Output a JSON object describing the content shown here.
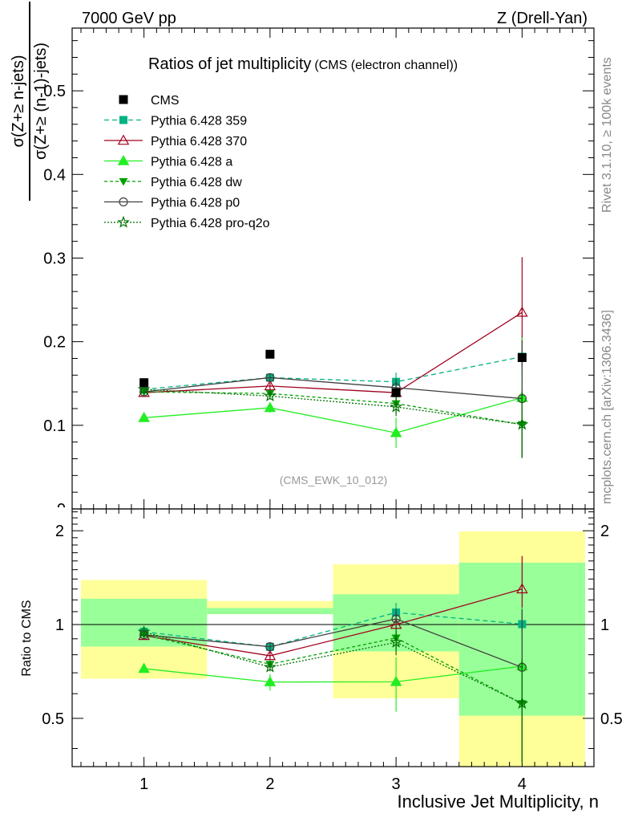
{
  "header": {
    "left": "7000 GeV pp",
    "right": "Z (Drell-Yan)"
  },
  "side": {
    "rivet": "Rivet 3.1.10, ≥ 100k events",
    "mcplots": "mcplots.cern.ch [arXiv:1306.3436]"
  },
  "chart_data": {
    "type": "line",
    "title": "Ratios of jet multiplicity",
    "subtitle": "(CMS (electron channel))",
    "analysis_tag": "(CMS_EWK_10_012)",
    "ylabel_num": "σ(Z+≥ n-jets)",
    "ylabel_den": "σ(Z+≥ (n-1)-jets)",
    "ratio_ylabel": "Ratio to CMS",
    "xlabel": "Inclusive Jet Multiplicity, n",
    "x": [
      1,
      2,
      3,
      4
    ],
    "xlim": [
      0.43,
      4.57
    ],
    "ylim": [
      0.0,
      0.575
    ],
    "ratio_ylim": [
      0.35,
      2.35
    ],
    "xticks": [
      "1",
      "2",
      "3",
      "4"
    ],
    "yticks": [
      {
        "v": 0.1,
        "label": "0.1"
      },
      {
        "v": 0.2,
        "label": "0.2"
      },
      {
        "v": 0.3,
        "label": "0.3"
      },
      {
        "v": 0.4,
        "label": "0.4"
      },
      {
        "v": 0.5,
        "label": "0.5"
      }
    ],
    "ratio_yticks": [
      {
        "v": 0.5,
        "label": "0.5"
      },
      {
        "v": 1,
        "label": "1"
      },
      {
        "v": 2,
        "label": "2"
      }
    ],
    "legend_position": "top-left",
    "data": {
      "name": "CMS",
      "values": [
        0.151,
        0.185,
        0.139,
        0.181
      ],
      "ratio_band_inner": [
        [
          0.85,
          1.21
        ],
        [
          1.08,
          1.13
        ],
        [
          0.82,
          1.25
        ],
        [
          0.51,
          1.58
        ]
      ],
      "ratio_band_outer": [
        [
          0.67,
          1.39
        ],
        [
          1.08,
          1.19
        ],
        [
          0.58,
          1.56
        ],
        [
          0.35,
          1.99
        ]
      ]
    },
    "series": [
      {
        "name": "Pythia 6.428 359",
        "color": "#00b383",
        "marker": "square",
        "dash": "6,4",
        "values": [
          0.143,
          0.157,
          0.152,
          0.182
        ],
        "err": [
          0.002,
          0.004,
          0.011,
          0.025
        ],
        "ratio": [
          0.948,
          0.848,
          1.093,
          1.003
        ],
        "ratio_err": [
          0.012,
          0.022,
          0.08,
          0.14
        ]
      },
      {
        "name": "Pythia 6.428 370",
        "color": "#a0001e",
        "marker": "triangle-open",
        "dash": "",
        "values": [
          0.139,
          0.147,
          0.139,
          0.235
        ],
        "err": [
          0.002,
          0.004,
          0.012,
          0.066
        ],
        "ratio": [
          0.921,
          0.794,
          1.0,
          1.3
        ],
        "ratio_err": [
          0.012,
          0.022,
          0.085,
          0.36
        ]
      },
      {
        "name": "Pythia 6.428 a",
        "color": "#22ee22",
        "marker": "triangle",
        "dash": "",
        "values": [
          0.109,
          0.121,
          0.091,
          0.133
        ],
        "err": [
          0.002,
          0.006,
          0.018,
          0.072
        ],
        "ratio": [
          0.722,
          0.654,
          0.655,
          0.735
        ],
        "ratio_err": [
          0.012,
          0.04,
          0.13,
          0.4
        ]
      },
      {
        "name": "Pythia 6.428 dw",
        "color": "#00a000",
        "marker": "triangle-down",
        "dash": "4,3",
        "values": [
          0.14,
          0.138,
          0.126,
          0.101
        ],
        "err": [
          0.002,
          0.004,
          0.011,
          0.04
        ],
        "ratio": [
          0.927,
          0.746,
          0.906,
          0.558
        ],
        "ratio_err": [
          0.012,
          0.022,
          0.08,
          0.22
        ]
      },
      {
        "name": "Pythia 6.428 p0",
        "color": "#404040",
        "marker": "circle-open",
        "dash": "",
        "values": [
          0.14,
          0.157,
          0.145,
          0.132
        ],
        "err": [
          0.002,
          0.004,
          0.011,
          0.07
        ],
        "ratio": [
          0.927,
          0.849,
          1.043,
          0.729
        ],
        "ratio_err": [
          0.012,
          0.022,
          0.08,
          0.39
        ]
      },
      {
        "name": "Pythia 6.428 pro-q2o",
        "color": "#007000",
        "marker": "star",
        "dash": "2,2",
        "values": [
          0.143,
          0.135,
          0.122,
          0.101
        ],
        "err": [
          0.002,
          0.004,
          0.011,
          0.04
        ],
        "ratio": [
          0.947,
          0.73,
          0.877,
          0.558
        ],
        "ratio_err": [
          0.012,
          0.022,
          0.08,
          0.22
        ]
      }
    ]
  }
}
